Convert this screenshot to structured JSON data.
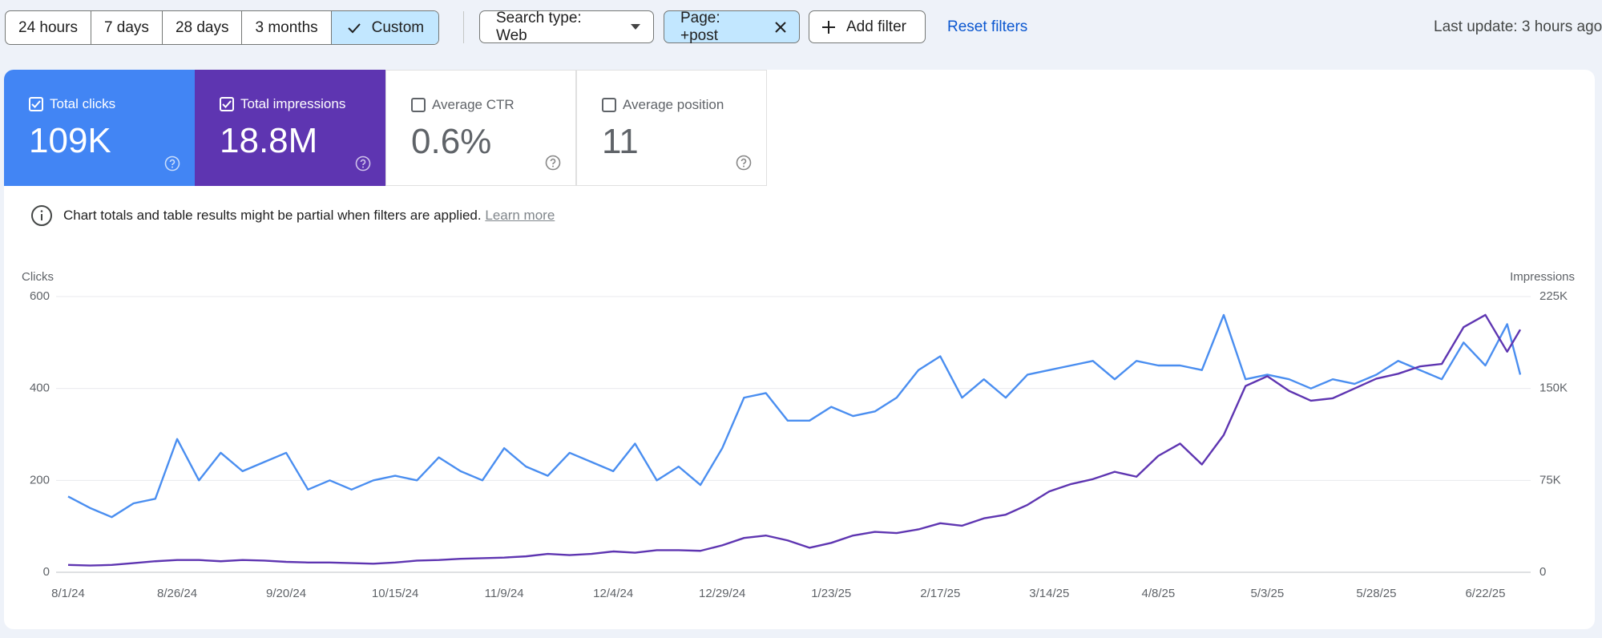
{
  "toolbar": {
    "date_ranges": [
      "24 hours",
      "7 days",
      "28 days",
      "3 months",
      "Custom"
    ],
    "search_type": "Search type: Web",
    "page_filter": "Page: +post",
    "add_filter": "Add filter",
    "reset": "Reset filters",
    "last_update": "Last update: 3 hours ago"
  },
  "metrics": [
    {
      "label": "Total clicks",
      "value": "109K"
    },
    {
      "label": "Total impressions",
      "value": "18.8M"
    },
    {
      "label": "Average CTR",
      "value": "0.6%"
    },
    {
      "label": "Average position",
      "value": "11"
    }
  ],
  "notice": {
    "text": "Chart totals and table results might be partial when filters are applied.",
    "link": "Learn more"
  },
  "chart_data": {
    "type": "line",
    "x": [
      "8/1/24",
      "8/6/24",
      "8/11/24",
      "8/16/24",
      "8/21/24",
      "8/26/24",
      "8/31/24",
      "9/5/24",
      "9/10/24",
      "9/15/24",
      "9/20/24",
      "9/25/24",
      "9/30/24",
      "10/5/24",
      "10/10/24",
      "10/15/24",
      "10/20/24",
      "10/25/24",
      "10/30/24",
      "11/4/24",
      "11/9/24",
      "11/14/24",
      "11/19/24",
      "11/24/24",
      "11/29/24",
      "12/4/24",
      "12/9/24",
      "12/14/24",
      "12/19/24",
      "12/24/24",
      "12/29/24",
      "1/3/25",
      "1/8/25",
      "1/13/25",
      "1/18/25",
      "1/23/25",
      "1/28/25",
      "2/2/25",
      "2/7/25",
      "2/12/25",
      "2/17/25",
      "2/22/25",
      "2/27/25",
      "3/4/25",
      "3/9/25",
      "3/14/25",
      "3/19/25",
      "3/24/25",
      "3/29/25",
      "4/3/25",
      "4/8/25",
      "4/13/25",
      "4/18/25",
      "4/23/25",
      "4/28/25",
      "5/3/25",
      "5/8/25",
      "5/13/25",
      "5/18/25",
      "5/23/25",
      "5/28/25",
      "6/2/25",
      "6/7/25",
      "6/12/25",
      "6/17/25",
      "6/22/25",
      "6/27/25",
      "6/30/25"
    ],
    "series": [
      {
        "name": "Clicks",
        "color": "#4a8ef0",
        "values": [
          165,
          140,
          120,
          150,
          160,
          290,
          200,
          260,
          220,
          240,
          260,
          180,
          200,
          180,
          200,
          210,
          200,
          250,
          220,
          200,
          270,
          230,
          210,
          260,
          240,
          220,
          280,
          200,
          230,
          190,
          270,
          380,
          390,
          330,
          330,
          360,
          340,
          350,
          380,
          440,
          470,
          380,
          420,
          380,
          430,
          440,
          450,
          460,
          420,
          460,
          450,
          450,
          440,
          560,
          420,
          430,
          420,
          400,
          420,
          410,
          430,
          460,
          440,
          420,
          500,
          450,
          540,
          430
        ]
      },
      {
        "name": "Impressions",
        "color": "#5e35b1",
        "axis": "y2",
        "values": [
          6000,
          5500,
          6000,
          7500,
          9000,
          10000,
          10000,
          9000,
          10000,
          9500,
          8500,
          8000,
          8000,
          7500,
          7000,
          8000,
          9500,
          10000,
          11000,
          11500,
          12000,
          13000,
          15000,
          14000,
          15000,
          17000,
          16000,
          18000,
          18000,
          17500,
          22000,
          28000,
          30000,
          26000,
          20000,
          24000,
          30000,
          33000,
          32000,
          35000,
          40000,
          38000,
          44000,
          47000,
          55000,
          66000,
          72000,
          76000,
          82000,
          78000,
          95000,
          105000,
          88000,
          112000,
          152000,
          160000,
          148000,
          140000,
          142000,
          150000,
          158000,
          162000,
          168000,
          170000,
          200000,
          210000,
          180000,
          198000
        ]
      }
    ],
    "xticks": [
      "8/1/24",
      "8/26/24",
      "9/20/24",
      "10/15/24",
      "11/9/24",
      "12/4/24",
      "12/29/24",
      "1/23/25",
      "2/17/25",
      "3/14/25",
      "4/8/25",
      "5/3/25",
      "5/28/25",
      "6/22/25"
    ],
    "ylim": [
      0,
      600
    ],
    "yticks": [
      0,
      200,
      400,
      600
    ],
    "y2lim": [
      0,
      225000
    ],
    "y2ticks": [
      0,
      {
        "value": 75000,
        "label": "75K"
      },
      {
        "value": 150000,
        "label": "150K"
      },
      {
        "value": 225000,
        "label": "225K"
      }
    ],
    "grid": true
  }
}
